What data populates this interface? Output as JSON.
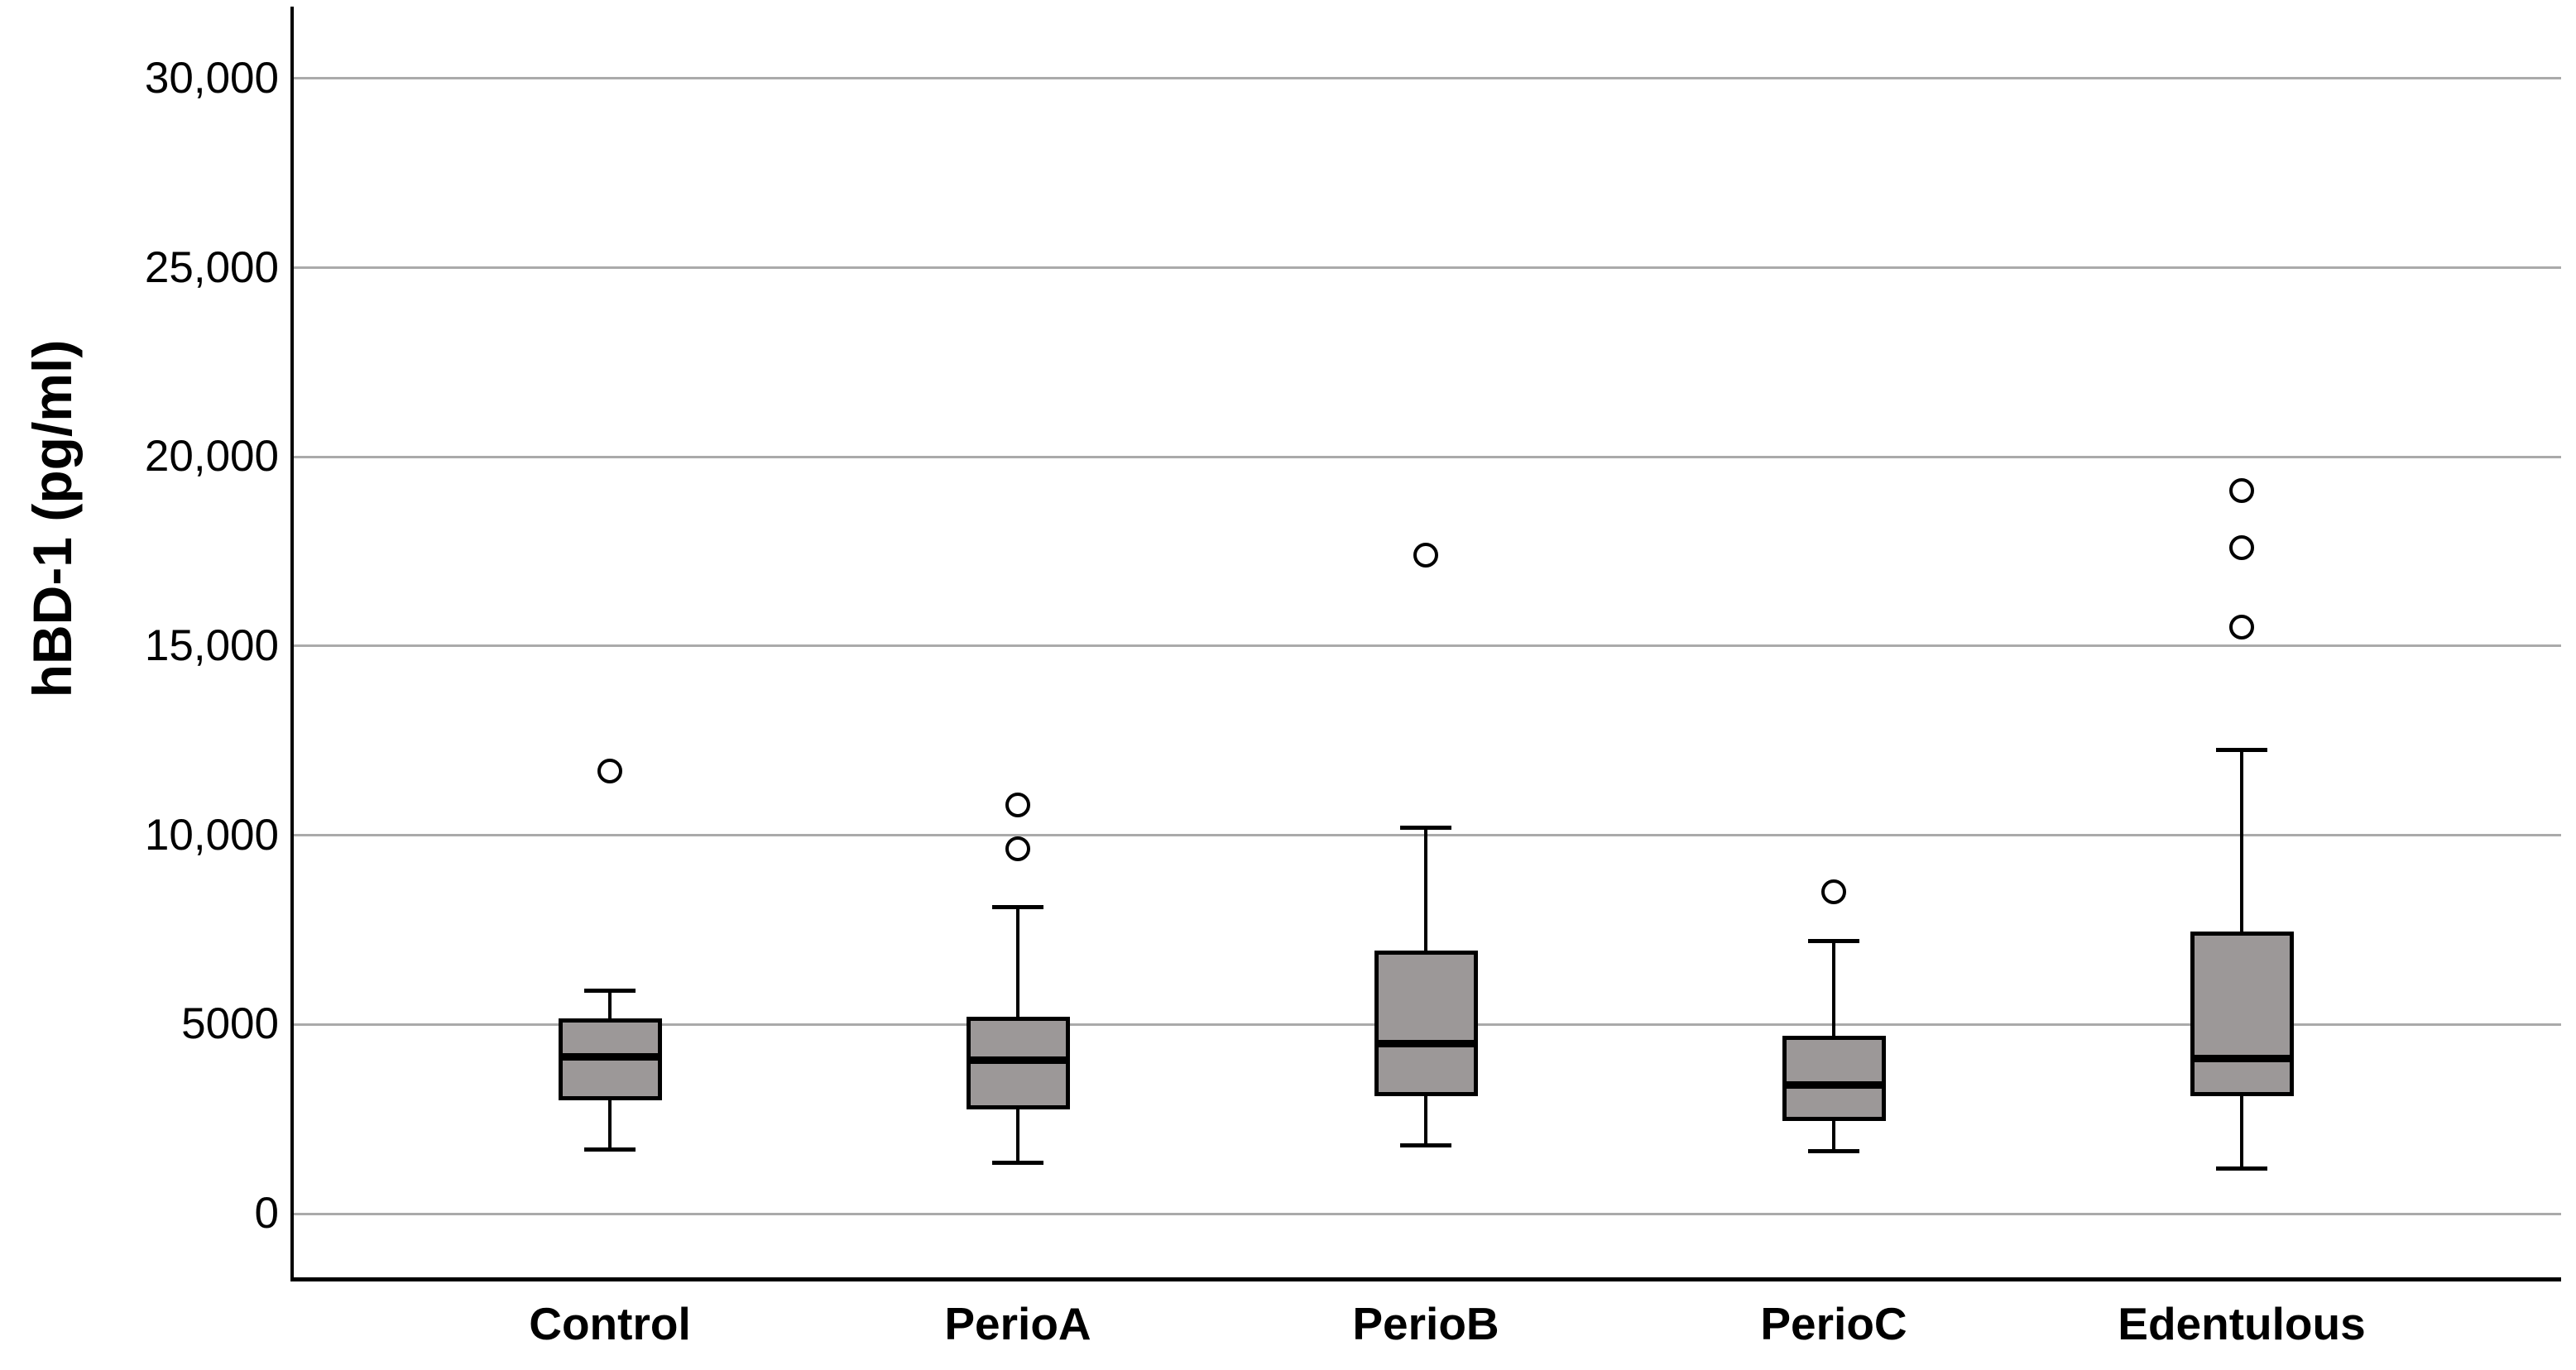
{
  "chart_data": {
    "type": "boxplot",
    "title": "",
    "xlabel": "",
    "ylabel": "hBD-1 (pg/ml)",
    "legend": "none",
    "grid": "horizontal",
    "ylim": [
      -1700,
      31900
    ],
    "y_axis": {
      "label": "hBD-1 (pg/ml)",
      "ticks": [
        {
          "value": 30000,
          "label": "30,000"
        },
        {
          "value": 25000,
          "label": "25,000"
        },
        {
          "value": 20000,
          "label": "20,000"
        },
        {
          "value": 15000,
          "label": "15,000"
        },
        {
          "value": 10000,
          "label": "10,000"
        },
        {
          "value": 5000,
          "label": "5000"
        },
        {
          "value": 0,
          "label": "0"
        }
      ]
    },
    "categories": [
      "Control",
      "PerioA",
      "PerioB",
      "PerioC",
      "Edentulous"
    ],
    "groups": [
      {
        "label": "Control",
        "whisker_low": 1700,
        "q1": 3000,
        "median": 4150,
        "q3": 5150,
        "whisker_high": 5900,
        "outliers": [
          11700
        ]
      },
      {
        "label": "PerioA",
        "whisker_low": 1350,
        "q1": 2750,
        "median": 4050,
        "q3": 5200,
        "whisker_high": 8100,
        "outliers": [
          9650,
          10800
        ]
      },
      {
        "label": "PerioB",
        "whisker_low": 1800,
        "q1": 3100,
        "median": 4500,
        "q3": 6950,
        "whisker_high": 10200,
        "outliers": [
          17400
        ]
      },
      {
        "label": "PerioC",
        "whisker_low": 1650,
        "q1": 2450,
        "median": 3400,
        "q3": 4700,
        "whisker_high": 7200,
        "outliers": [
          8500
        ]
      },
      {
        "label": "Edentulous",
        "whisker_low": 1200,
        "q1": 3100,
        "median": 4100,
        "q3": 7450,
        "whisker_high": 12250,
        "outliers": [
          15500,
          17600,
          19100
        ]
      }
    ],
    "colors": {
      "box_fill": "#9c9898",
      "box_border": "#000000",
      "median": "#000000",
      "whisker": "#000000",
      "outlier_stroke": "#000000",
      "gridline": "#aaaaaa",
      "background": "#ffffff",
      "text": "#000000"
    }
  }
}
